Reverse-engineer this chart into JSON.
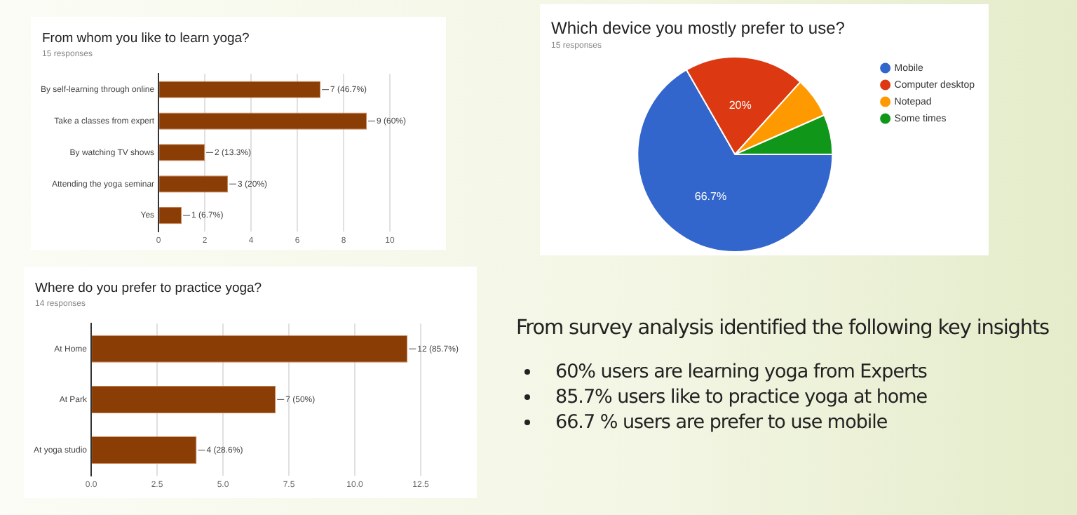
{
  "chart_data": [
    {
      "type": "bar",
      "orientation": "horizontal",
      "title": "From whom you like to learn yoga?",
      "subtitle": "15 responses",
      "categories": [
        "By self-learning through online",
        "Take a classes from expert",
        "By watching TV shows",
        "Attending the yoga seminar",
        "Yes"
      ],
      "values": [
        7,
        9,
        2,
        3,
        1
      ],
      "value_labels": [
        "7 (46.7%)",
        "9 (60%)",
        "2 (13.3%)",
        "3 (20%)",
        "1 (6.7%)"
      ],
      "color": "#8b3d06",
      "xlim": [
        0,
        10
      ],
      "xticks": [
        0,
        2,
        4,
        6,
        8,
        10
      ],
      "grid": "x",
      "legend": false
    },
    {
      "type": "pie",
      "title": "Which device you mostly prefer to use?",
      "subtitle": "15 responses",
      "categories": [
        "Mobile",
        "Computer desktop",
        "Notepad",
        "Some times"
      ],
      "values": [
        66.7,
        20,
        6.7,
        6.6
      ],
      "colors": [
        "#3366cc",
        "#dc3912",
        "#ff9900",
        "#109618"
      ],
      "value_labels": [
        "66.7%",
        "20%",
        null,
        null
      ],
      "legend": "right"
    },
    {
      "type": "bar",
      "orientation": "horizontal",
      "title": "Where do you prefer to practice yoga?",
      "subtitle": "14 responses",
      "categories": [
        "At Home",
        "At Park",
        "At yoga studio"
      ],
      "values": [
        12,
        7,
        4
      ],
      "value_labels": [
        "12 (85.7%)",
        "7 (50%)",
        "4 (28.6%)"
      ],
      "color": "#8b3d06",
      "xlim": [
        0,
        12.5
      ],
      "xticks": [
        {
          "value": 0,
          "label": "0.0"
        },
        {
          "value": 2.5,
          "label": "2.5"
        },
        {
          "value": 5,
          "label": "5.0"
        },
        {
          "value": 7.5,
          "label": "7.5"
        },
        {
          "value": 10,
          "label": "10.0"
        },
        {
          "value": 12.5,
          "label": "12.5"
        }
      ],
      "grid": "x",
      "legend": false
    },
    {
      "type": "other",
      "title": "From survey analysis identified the following  key insights",
      "annotations": [
        "60%  users are learning yoga from Experts",
        "85.7% users like to practice yoga at home",
        "66.7 % users are  prefer to use mobile"
      ]
    }
  ]
}
